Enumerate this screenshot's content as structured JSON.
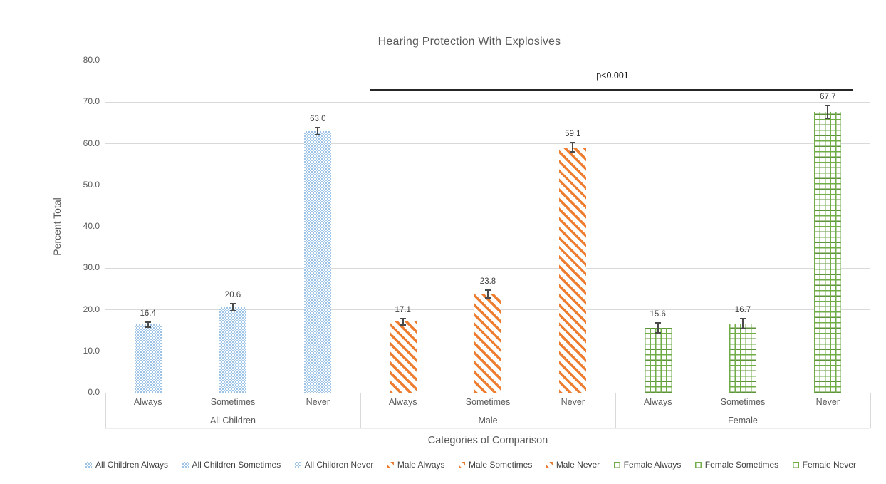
{
  "chart_data": {
    "type": "bar",
    "title": "Hearing Protection With Explosives",
    "xlabel": "Categories of Comparison",
    "ylabel": "Percent Total",
    "ylim": [
      0,
      80
    ],
    "ytick_step": 10,
    "yticks": [
      "80.0",
      "70.0",
      "60.0",
      "50.0",
      "40.0",
      "30.0",
      "20.0",
      "10.0",
      "0.0"
    ],
    "grid": true,
    "categories": [
      "Always",
      "Sometimes",
      "Never"
    ],
    "groups": [
      {
        "label": "All Children",
        "categories": [
          "Always",
          "Sometimes",
          "Never"
        ],
        "values": [
          16.4,
          20.6,
          63.0
        ],
        "errors": [
          0.8,
          1.0,
          1.0
        ],
        "fill_pattern": "blue-dotted-diamond",
        "color": "#9DC3E6"
      },
      {
        "label": "Male",
        "categories": [
          "Always",
          "Sometimes",
          "Never"
        ],
        "values": [
          17.1,
          23.8,
          59.1
        ],
        "errors": [
          1.0,
          1.1,
          1.3
        ],
        "fill_pattern": "orange-diagonal-stripe",
        "color": "#ED7D31"
      },
      {
        "label": "Female",
        "categories": [
          "Always",
          "Sometimes",
          "Never"
        ],
        "values": [
          15.6,
          16.7,
          67.7
        ],
        "errors": [
          1.4,
          1.4,
          1.7
        ],
        "fill_pattern": "green-grid",
        "color": "#70AD47"
      }
    ],
    "value_labels": [
      "16.4",
      "20.6",
      "63.0",
      "17.1",
      "23.8",
      "59.1",
      "15.6",
      "16.7",
      "67.7"
    ],
    "annotation": {
      "text": "p<0.001",
      "spans": "Male and Female groups"
    },
    "legend": [
      "All Children Always",
      "All Children Sometimes",
      "All Children Never",
      "Male Always",
      "Male Sometimes",
      "Male Never",
      "Female Always",
      "Female Sometimes",
      "Female Never"
    ],
    "legend_position": "bottom"
  },
  "colors": {
    "all_children": "#9DC3E6",
    "male": "#ED7D31",
    "female": "#70AD47",
    "female_dark": "#5C9239",
    "error_bar": "#4a4a4a",
    "grid": "#D9D9D9",
    "axis": "#BFBFBF",
    "text": "#595959",
    "significance_line": "#262626"
  }
}
